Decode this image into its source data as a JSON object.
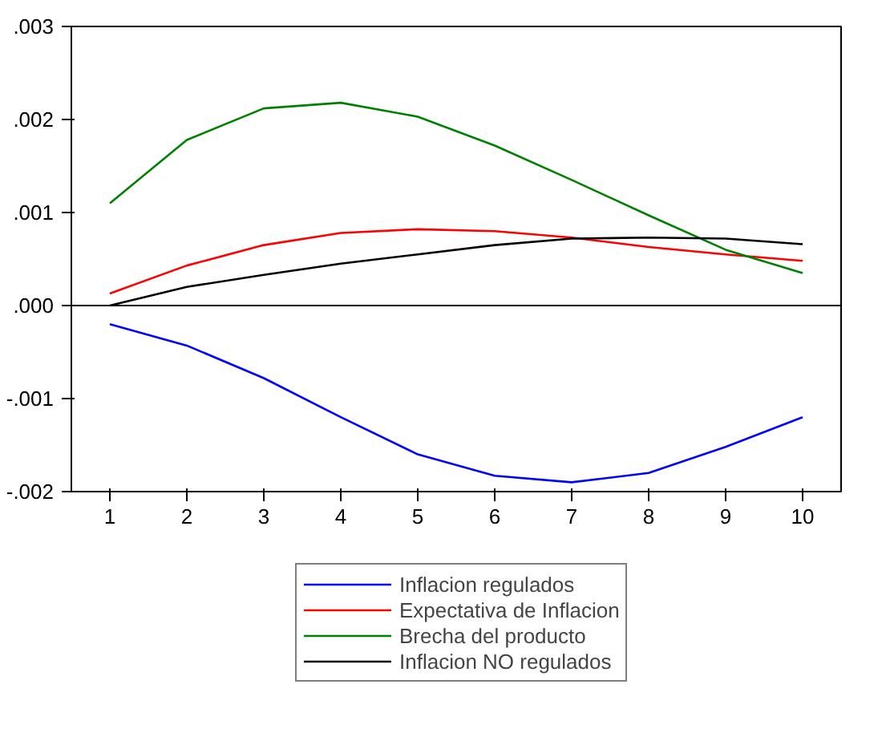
{
  "chart_data": {
    "type": "line",
    "categories": [
      "1",
      "2",
      "3",
      "4",
      "5",
      "6",
      "7",
      "8",
      "9",
      "10"
    ],
    "ylim": [
      -0.002,
      0.003
    ],
    "yticks": [
      {
        "value": -0.002,
        "label": "-.002"
      },
      {
        "value": -0.001,
        "label": "-.001"
      },
      {
        "value": 0,
        "label": ".000"
      },
      {
        "value": 0.001,
        "label": ".001"
      },
      {
        "value": 0.002,
        "label": ".002"
      },
      {
        "value": 0.003,
        "label": ".003"
      }
    ],
    "series": [
      {
        "name": "Inflacion regulados",
        "color": "#0000ff",
        "values": [
          -0.0002,
          -0.00043,
          -0.00078,
          -0.0012,
          -0.0016,
          -0.00183,
          -0.0019,
          -0.0018,
          -0.00152,
          -0.0012
        ]
      },
      {
        "name": "Expectativa de Inflacion",
        "color": "#ff0000",
        "values": [
          0.00013,
          0.00043,
          0.00065,
          0.00078,
          0.00082,
          0.0008,
          0.00073,
          0.00063,
          0.00055,
          0.00048
        ]
      },
      {
        "name": "Brecha del producto",
        "color": "#008000",
        "values": [
          0.0011,
          0.00178,
          0.00212,
          0.00218,
          0.00203,
          0.00172,
          0.00135,
          0.00097,
          0.0006,
          0.00035
        ]
      },
      {
        "name": "Inflacion NO regulados",
        "color": "#000000",
        "values": [
          0,
          0.0002,
          0.00033,
          0.00045,
          0.00055,
          0.00065,
          0.00072,
          0.00073,
          0.00072,
          0.00066
        ]
      }
    ],
    "ref_lines": [
      {
        "axis": "y",
        "value": 0,
        "color": "#000000"
      }
    ],
    "grid": false,
    "legend": "bottom",
    "line_style": "solid",
    "marker": "none"
  }
}
